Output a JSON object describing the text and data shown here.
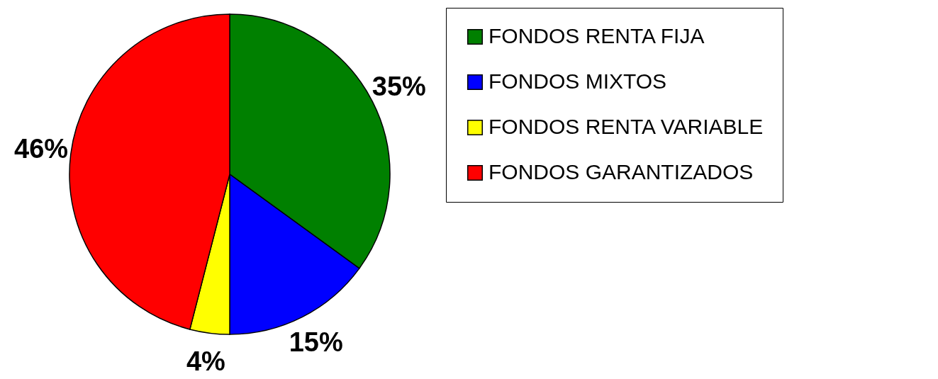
{
  "chart_data": {
    "type": "pie",
    "categories": [
      "FONDOS RENTA FIJA",
      "FONDOS MIXTOS",
      "FONDOS RENTA VARIABLE",
      "FONDOS GARANTIZADOS"
    ],
    "values": [
      35,
      15,
      4,
      46
    ],
    "colors": [
      "#008000",
      "#0000ff",
      "#ffff00",
      "#ff0000"
    ],
    "value_labels": [
      "35%",
      "15%",
      "4%",
      "46%"
    ],
    "legend": "right"
  }
}
